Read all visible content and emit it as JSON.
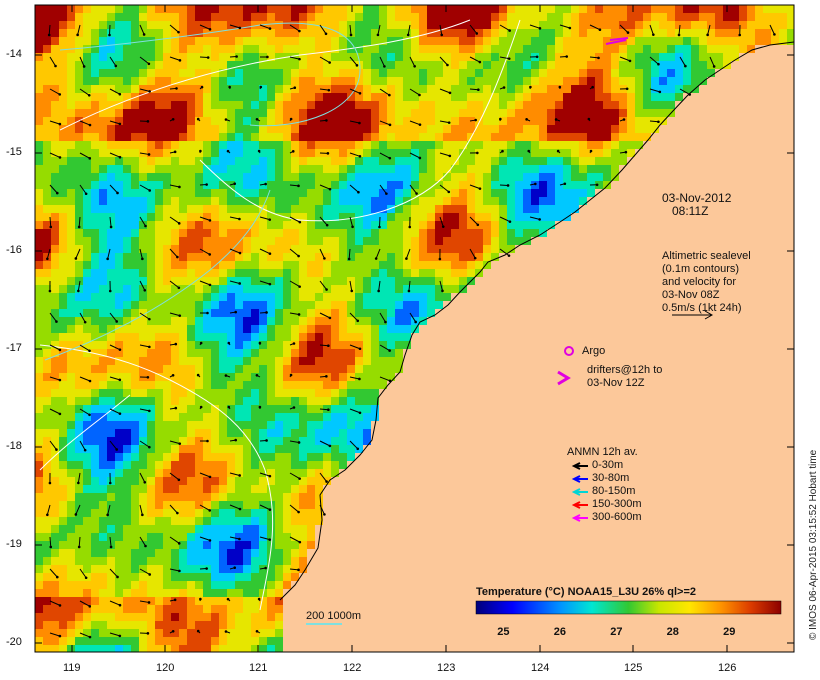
{
  "map": {
    "lat_ticks": [
      "-14",
      "-15",
      "-16",
      "-17",
      "-18",
      "-19",
      "-20"
    ],
    "lon_ticks": [
      "119",
      "120",
      "121",
      "122",
      "123",
      "124",
      "125",
      "126"
    ],
    "timestamp": "03-Nov-2012\n   08:11Z",
    "altimetry_note": "Altimetric sealevel\n(0.1m contours)\nand velocity for\n03-Nov 08Z\n0.5m/s (1kt 24h)",
    "argo_label": "Argo",
    "drifters_label": "drifters@12h to\n03-Nov 12Z",
    "anmn_title": "ANMN 12h av.",
    "anmn_items": [
      {
        "label": "0-30m",
        "color": "#000000"
      },
      {
        "label": "30-80m",
        "color": "#0000ff"
      },
      {
        "label": "80-150m",
        "color": "#00d5d5"
      },
      {
        "label": "150-300m",
        "color": "#ff0000"
      },
      {
        "label": "300-600m",
        "color": "#ff00ff"
      }
    ],
    "scale_label": "200  1000m",
    "side_caption": "© IMOS 06-Apr-2015 03:15:52 Hobart time",
    "colorbar": {
      "title": "Temperature (°C) NOAA15_L3U 26% ql>=2",
      "ticks": [
        "25",
        "26",
        "27",
        "28",
        "29"
      ],
      "min": 24.5,
      "max": 29.9
    },
    "colors": {
      "land": "#fcc89a",
      "argo": "#e000e0"
    }
  }
}
